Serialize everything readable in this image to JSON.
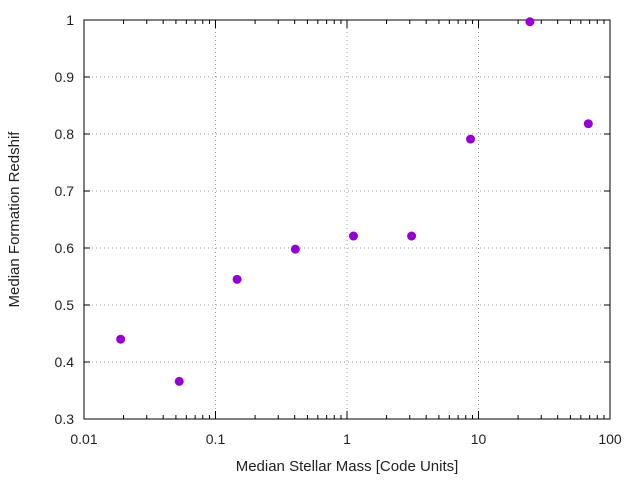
{
  "chart_data": {
    "type": "scatter",
    "title": "",
    "xlabel": "Median Stellar Mass [Code Units]",
    "ylabel": "Median Formation Redshif",
    "x_scale": "log",
    "xlim": [
      0.01,
      100
    ],
    "ylim": [
      0.3,
      1.0
    ],
    "x_ticks": [
      0.01,
      0.1,
      1,
      10,
      100
    ],
    "x_tick_labels": [
      "0.01",
      "0.1",
      "1",
      "10",
      "100"
    ],
    "y_ticks": [
      0.3,
      0.4,
      0.5,
      0.6,
      0.7,
      0.8,
      0.9,
      1.0
    ],
    "y_tick_labels": [
      "0.3",
      "0.4",
      "0.5",
      "0.6",
      "0.7",
      "0.8",
      "0.9",
      "1"
    ],
    "grid": true,
    "marker_color": "#9400d3",
    "series": [
      {
        "points": [
          {
            "x": 0.019,
            "y": 0.44
          },
          {
            "x": 0.053,
            "y": 0.366
          },
          {
            "x": 0.146,
            "y": 0.545
          },
          {
            "x": 0.405,
            "y": 0.598
          },
          {
            "x": 1.12,
            "y": 0.621
          },
          {
            "x": 3.1,
            "y": 0.621
          },
          {
            "x": 8.7,
            "y": 0.791
          },
          {
            "x": 24.6,
            "y": 0.997
          },
          {
            "x": 68.4,
            "y": 0.818
          }
        ]
      }
    ]
  }
}
